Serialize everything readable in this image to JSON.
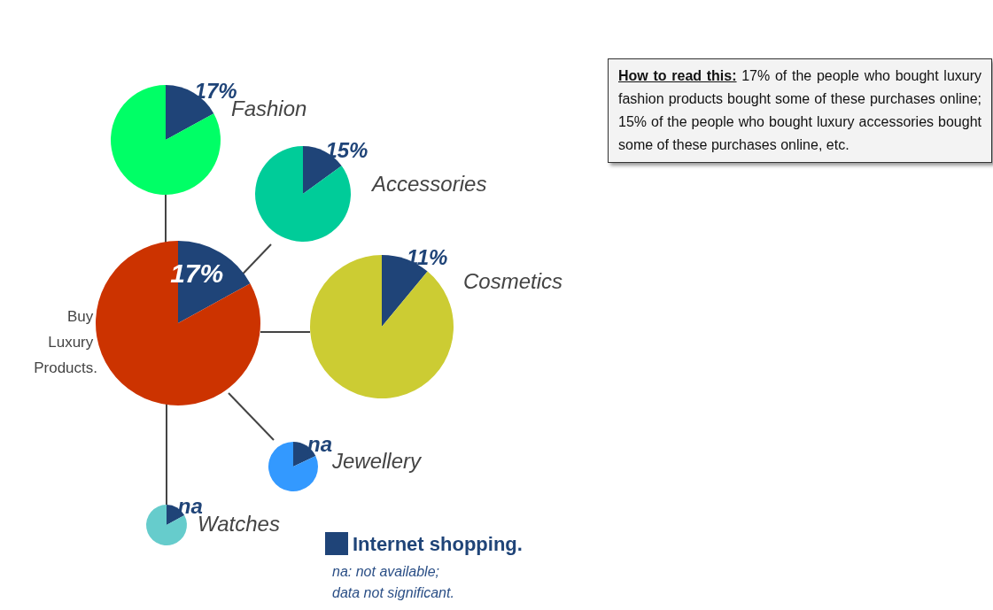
{
  "chart_data": [
    {
      "type": "pie",
      "title": "Buy Luxury Products.",
      "categories": [
        "Internet shopping.",
        null
      ],
      "values": [
        17,
        83
      ],
      "colors": [
        "#1f4478",
        "#cc3300"
      ],
      "value_labels": [
        "17%",
        null
      ],
      "legend": "bottom right",
      "annotations": [
        "How to read this:",
        "17% of the people who bought luxury fashion products bought some of these purchases online; 15% of the people who bought luxury accessories bought some of these purchases online, etc.",
        "na: not available; data not significant."
      ]
    },
    {
      "type": "pie",
      "title": "Fashion",
      "categories": [
        null,
        null
      ],
      "values": [
        17,
        83
      ],
      "colors": [
        "#1f4478",
        "#00ff66"
      ],
      "value_labels": [
        "17%",
        null
      ]
    },
    {
      "type": "pie",
      "title": "Accessories",
      "categories": [
        null,
        null
      ],
      "values": [
        15,
        85
      ],
      "colors": [
        "#1f4478",
        "#00cc99"
      ],
      "value_labels": [
        "15%",
        null
      ]
    },
    {
      "type": "pie",
      "title": "Cosmetics",
      "categories": [
        null,
        null
      ],
      "values": [
        11,
        89
      ],
      "colors": [
        "#1f4478",
        "#cccc33"
      ],
      "value_labels": [
        "11%",
        null
      ]
    },
    {
      "type": "pie",
      "title": "Jewellery",
      "categories": [
        null,
        null
      ],
      "values": [
        18,
        82
      ],
      "colors": [
        "#1f4478",
        "#3399ff"
      ],
      "value_labels": [
        "na",
        null
      ]
    },
    {
      "type": "pie",
      "title": "Watches",
      "categories": [
        null,
        null
      ],
      "values": [
        17,
        83
      ],
      "colors": [
        "#1f4478",
        "#66cccc"
      ],
      "value_labels": [
        "na",
        null
      ]
    }
  ]
}
